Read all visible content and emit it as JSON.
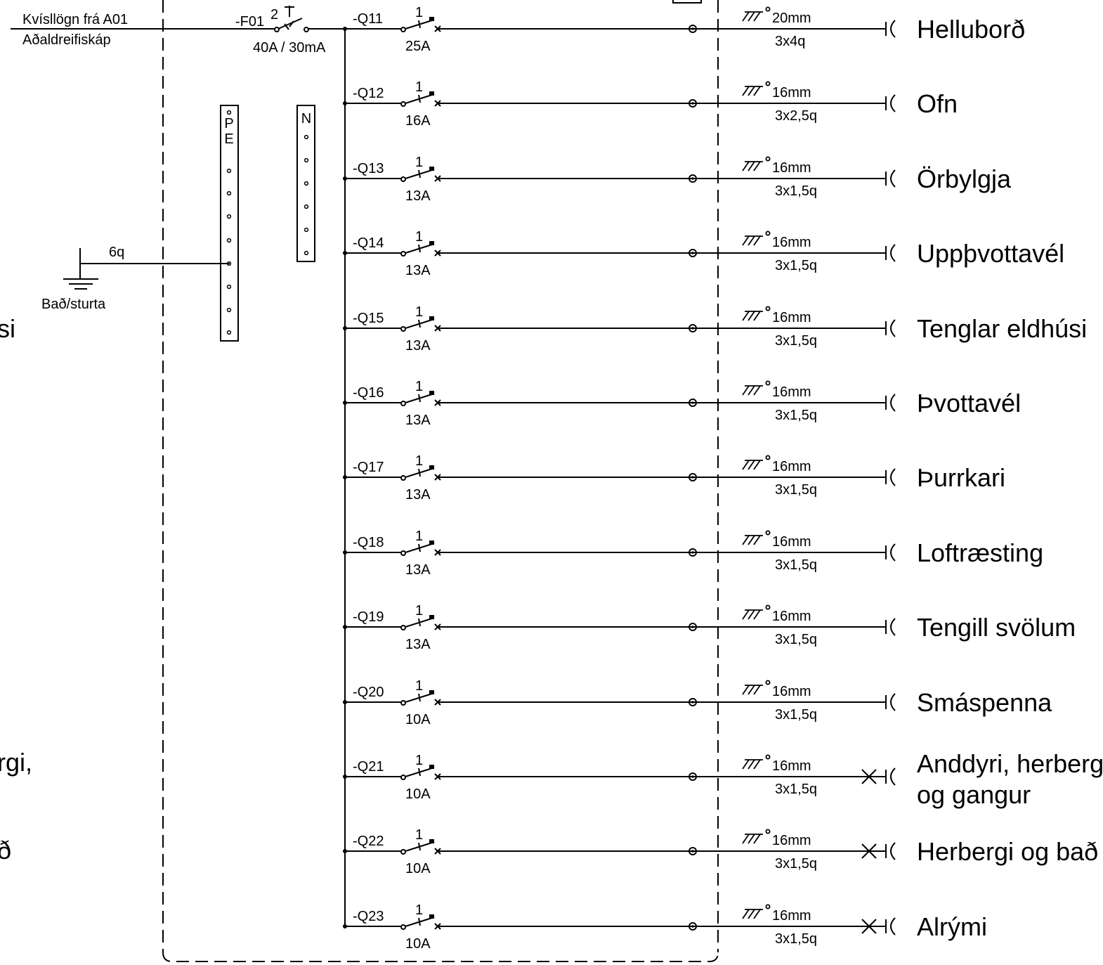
{
  "feeder": {
    "line1": "Kvísllögn frá A01",
    "line2": "Aðaldreifiskáp",
    "rcd_label": "-F01",
    "rcd_poles": "2",
    "rcd_rating": "40A / 30mA"
  },
  "earth": {
    "size": "6q",
    "label": "Bað/sturta"
  },
  "bars": {
    "pe_label": "PE",
    "n_label": "N"
  },
  "left_partial": [
    "si",
    "rgi,",
    "ð"
  ],
  "circuits": [
    {
      "id": "-Q11",
      "poles": "1",
      "rating": "25A",
      "cable": "20mm",
      "conductors": "3x4q",
      "load": "Helluborð",
      "type": "socket"
    },
    {
      "id": "-Q12",
      "poles": "1",
      "rating": "16A",
      "cable": "16mm",
      "conductors": "3x2,5q",
      "load": "Ofn",
      "type": "socket"
    },
    {
      "id": "-Q13",
      "poles": "1",
      "rating": "13A",
      "cable": "16mm",
      "conductors": "3x1,5q",
      "load": "Örbylgja",
      "type": "socket"
    },
    {
      "id": "-Q14",
      "poles": "1",
      "rating": "13A",
      "cable": "16mm",
      "conductors": "3x1,5q",
      "load": "Uppþvottavél",
      "type": "socket"
    },
    {
      "id": "-Q15",
      "poles": "1",
      "rating": "13A",
      "cable": "16mm",
      "conductors": "3x1,5q",
      "load": "Tenglar eldhúsi",
      "type": "socket"
    },
    {
      "id": "-Q16",
      "poles": "1",
      "rating": "13A",
      "cable": "16mm",
      "conductors": "3x1,5q",
      "load": "Þvottavél",
      "type": "socket"
    },
    {
      "id": "-Q17",
      "poles": "1",
      "rating": "13A",
      "cable": "16mm",
      "conductors": "3x1,5q",
      "load": "Þurrkari",
      "type": "socket"
    },
    {
      "id": "-Q18",
      "poles": "1",
      "rating": "13A",
      "cable": "16mm",
      "conductors": "3x1,5q",
      "load": "Loftræsting",
      "type": "socket"
    },
    {
      "id": "-Q19",
      "poles": "1",
      "rating": "13A",
      "cable": "16mm",
      "conductors": "3x1,5q",
      "load": "Tengill svölum",
      "type": "socket"
    },
    {
      "id": "-Q20",
      "poles": "1",
      "rating": "10A",
      "cable": "16mm",
      "conductors": "3x1,5q",
      "load": "Smáspenna",
      "type": "socket"
    },
    {
      "id": "-Q21",
      "poles": "1",
      "rating": "10A",
      "cable": "16mm",
      "conductors": "3x1,5q",
      "load": "Anddyri, herberg",
      "load2": "og gangur",
      "type": "light"
    },
    {
      "id": "-Q22",
      "poles": "1",
      "rating": "10A",
      "cable": "16mm",
      "conductors": "3x1,5q",
      "load": "Herbergi og bað",
      "type": "light"
    },
    {
      "id": "-Q23",
      "poles": "1",
      "rating": "10A",
      "cable": "16mm",
      "conductors": "3x1,5q",
      "load": "Alrými",
      "type": "light"
    }
  ]
}
